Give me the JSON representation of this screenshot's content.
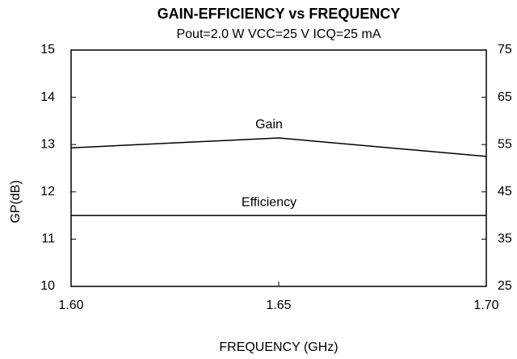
{
  "chart_data": {
    "type": "line",
    "title": "GAIN-EFFICIENCY vs FREQUENCY",
    "subtitle": "Pout=2.0 W VCC=25 V ICQ=25 mA",
    "x_label": "FREQUENCY (GHz)",
    "y_label": "GP(dB)",
    "x": [
      1.6,
      1.65,
      1.7
    ],
    "xlim": [
      1.6,
      1.7
    ],
    "xticks": [
      {
        "value": 1.6,
        "label": "1.60"
      },
      {
        "value": 1.65,
        "label": "1.65"
      },
      {
        "value": 1.7,
        "label": "1.70"
      }
    ],
    "ylim": [
      10,
      15
    ],
    "yticks": [
      10,
      11,
      12,
      13,
      14,
      15
    ],
    "y2lim": [
      25,
      75
    ],
    "y2ticks": [
      25,
      35,
      45,
      55,
      65,
      75
    ],
    "grid": false,
    "series": [
      {
        "name": "Gain",
        "color": "#000000",
        "values": [
          12.93,
          13.14,
          12.75
        ]
      },
      {
        "name": "Efficiency",
        "color": "#000000",
        "axis": "y2",
        "values": [
          40,
          40,
          40
        ]
      }
    ]
  }
}
